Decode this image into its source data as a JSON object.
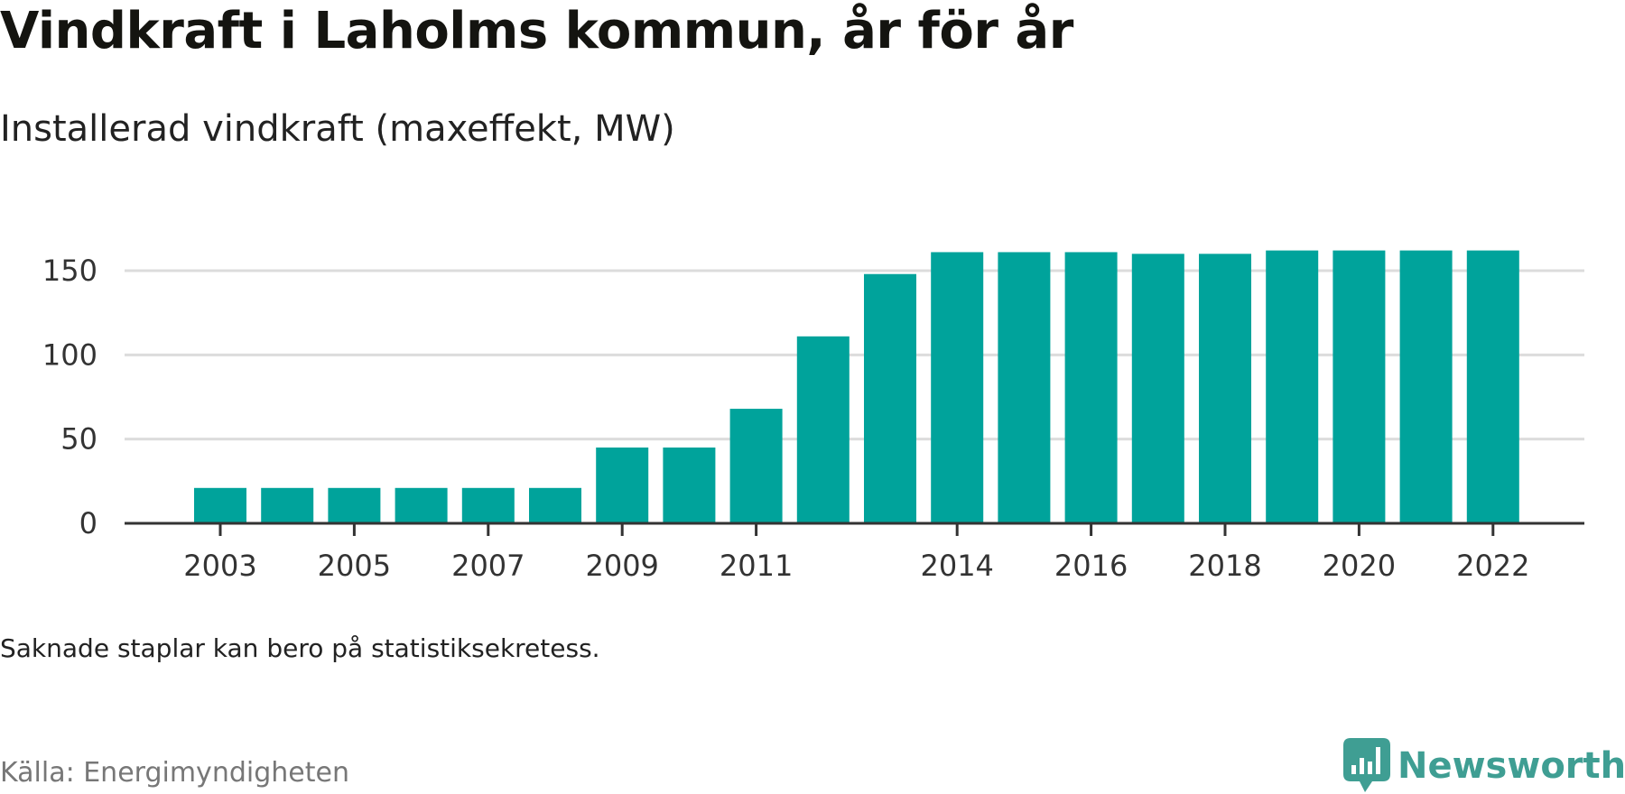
{
  "colors": {
    "bar": "#00a39b",
    "brand": "#3f9e93",
    "grid": "#dcdcdc",
    "axis": "#333333"
  },
  "header": {
    "title": "Vindkraft i Laholms kommun, år för år",
    "subtitle": "Installerad vindkraft (maxeffekt, MW)"
  },
  "footer": {
    "note": "Saknade staplar kan bero på statistiksekretess.",
    "source": "Källa: Energimyndigheten",
    "brand_name": "Newsworthy",
    "brand_logo_icon": "newsworthy-logo-icon"
  },
  "chart_data": {
    "type": "bar",
    "title": "Vindkraft i Laholms kommun, år för år",
    "subtitle": "Installerad vindkraft (maxeffekt, MW)",
    "xlabel": "",
    "ylabel": "",
    "ylim": [
      0,
      160
    ],
    "yticks": [
      0,
      50,
      100,
      150
    ],
    "grid": true,
    "categories": [
      "2003",
      "2004",
      "2005",
      "2006",
      "2007",
      "2008",
      "2009",
      "2010",
      "2011",
      "2012",
      "2013",
      "2014",
      "2015",
      "2016",
      "2017",
      "2018",
      "2019",
      "2020",
      "2021",
      "2022"
    ],
    "xtick_labels": [
      "2003",
      "2005",
      "2007",
      "2009",
      "2011",
      "2014",
      "2016",
      "2018",
      "2020",
      "2022"
    ],
    "values": [
      21,
      21,
      21,
      21,
      21,
      21,
      45,
      45,
      68,
      111,
      148,
      161,
      161,
      161,
      160,
      160,
      162,
      162,
      162,
      162
    ]
  }
}
